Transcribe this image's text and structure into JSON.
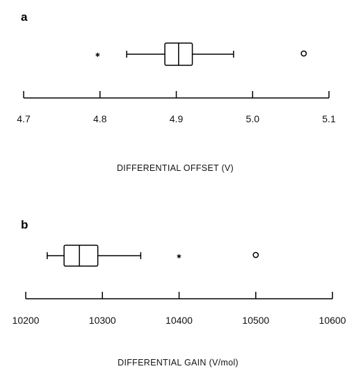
{
  "chart_data": [
    {
      "type": "boxplot",
      "panel_label": "a",
      "xlabel": "DIFFERENTIAL OFFSET (V)",
      "xlim": [
        4.7,
        5.1
      ],
      "ticks": [
        4.7,
        4.8,
        4.9,
        5.0,
        5.1
      ],
      "tick_labels": [
        "4.7",
        "4.8",
        "4.9",
        "5.0",
        "5.1"
      ],
      "box": {
        "whisker_low": 4.835,
        "q1": 4.885,
        "median": 4.903,
        "q3": 4.921,
        "whisker_high": 4.975
      },
      "outliers": [
        {
          "value": 4.797,
          "marker": "asterisk"
        },
        {
          "value": 5.067,
          "marker": "circle"
        }
      ]
    },
    {
      "type": "boxplot",
      "panel_label": "b",
      "xlabel": "DIFFERENTIAL GAIN (V/mol)",
      "xlim": [
        10200,
        10600
      ],
      "ticks": [
        10200,
        10300,
        10400,
        10500,
        10600
      ],
      "tick_labels": [
        "10200",
        "10300",
        "10400",
        "10500",
        "10600"
      ],
      "box": {
        "whisker_low": 10228,
        "q1": 10250,
        "median": 10270,
        "q3": 10294,
        "whisker_high": 10350
      },
      "outliers": [
        {
          "value": 10400,
          "marker": "asterisk"
        },
        {
          "value": 10500,
          "marker": "circle"
        }
      ]
    }
  ]
}
